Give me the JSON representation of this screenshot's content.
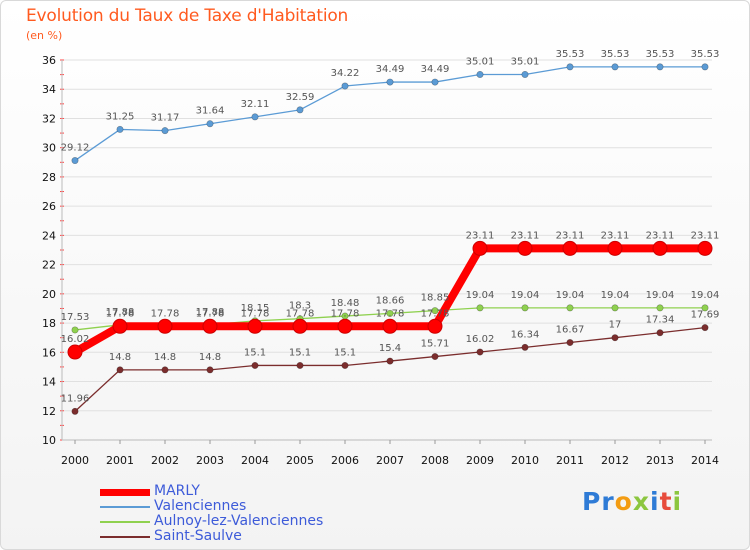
{
  "chart_data": {
    "type": "line",
    "title": "Evolution du Taux de Taxe d'Habitation",
    "subtitle": "(en %)",
    "x": [
      "2000",
      "2001",
      "2002",
      "2003",
      "2004",
      "2005",
      "2006",
      "2007",
      "2008",
      "2009",
      "2010",
      "2011",
      "2012",
      "2013",
      "2014"
    ],
    "ylim": [
      10,
      36
    ],
    "yticks": [
      10,
      12,
      14,
      16,
      18,
      20,
      22,
      24,
      26,
      28,
      30,
      32,
      34,
      36
    ],
    "grid": "horizontal",
    "legend_position": "bottom-left",
    "series": [
      {
        "name": "MARLY",
        "color": "#ff0000",
        "values": [
          16.02,
          17.78,
          17.78,
          17.78,
          17.78,
          17.78,
          17.78,
          17.78,
          17.78,
          23.11,
          23.11,
          23.11,
          23.11,
          23.11,
          23.11
        ],
        "labels": [
          "16.02",
          "17.78",
          "17.78",
          "17.78",
          "17.78",
          "17.78",
          "17.78",
          "17.78",
          "17.78",
          "23.11",
          "23.11",
          "23.11",
          "23.11",
          "23.11",
          "23.11"
        ]
      },
      {
        "name": "Valenciennes",
        "color": "#5b9bd5",
        "values": [
          29.12,
          31.25,
          31.17,
          31.64,
          32.11,
          32.59,
          34.22,
          34.49,
          34.49,
          35.01,
          35.01,
          35.53,
          35.53,
          35.53,
          35.53
        ],
        "labels": [
          "29.12",
          "31.25",
          "31.17",
          "31.64",
          "32.11",
          "32.59",
          "34.22",
          "34.49",
          "34.49",
          "35.01",
          "35.01",
          "35.53",
          "35.53",
          "35.53",
          "35.53"
        ]
      },
      {
        "name": "Aulnoy-lez-Valenciennes",
        "color": "#8fd14f",
        "values": [
          17.53,
          17.88,
          17.88,
          17.88,
          18.15,
          18.3,
          18.48,
          18.66,
          18.85,
          19.04,
          19.04,
          19.04,
          19.04,
          19.04,
          19.04
        ],
        "labels": [
          "17.53",
          "17.88",
          "",
          "17.88",
          "18.15",
          "18.3",
          "18.48",
          "18.66",
          "18.85",
          "19.04",
          "19.04",
          "19.04",
          "19.04",
          "19.04",
          "19.04"
        ]
      },
      {
        "name": "Saint-Saulve",
        "color": "#7b2d2d",
        "values": [
          11.96,
          14.8,
          14.8,
          14.8,
          15.1,
          15.1,
          15.1,
          15.4,
          15.71,
          16.02,
          16.34,
          16.67,
          17,
          17.34,
          17.69
        ],
        "labels": [
          "11.96",
          "14.8",
          "14.8",
          "14.8",
          "15.1",
          "15.1",
          "15.1",
          "15.4",
          "15.71",
          "16.02",
          "16.34",
          "16.67",
          "17",
          "17.34",
          "17.69"
        ]
      }
    ]
  },
  "legend": {
    "items": [
      {
        "label": "MARLY",
        "color": "#ff0000"
      },
      {
        "label": "Valenciennes",
        "color": "#5b9bd5"
      },
      {
        "label": "Aulnoy-lez-Valenciennes",
        "color": "#8fd14f"
      },
      {
        "label": "Saint-Saulve",
        "color": "#7b2d2d"
      }
    ]
  },
  "logo": {
    "letters": [
      {
        "ch": "P",
        "color": "#2e7bd6"
      },
      {
        "ch": "r",
        "color": "#2e7bd6"
      },
      {
        "ch": "o",
        "color": "#f39c12"
      },
      {
        "ch": "x",
        "color": "#8cc63f"
      },
      {
        "ch": "i",
        "color": "#2e7bd6"
      },
      {
        "ch": "t",
        "color": "#e74c3c"
      },
      {
        "ch": "i",
        "color": "#8cc63f"
      }
    ]
  }
}
